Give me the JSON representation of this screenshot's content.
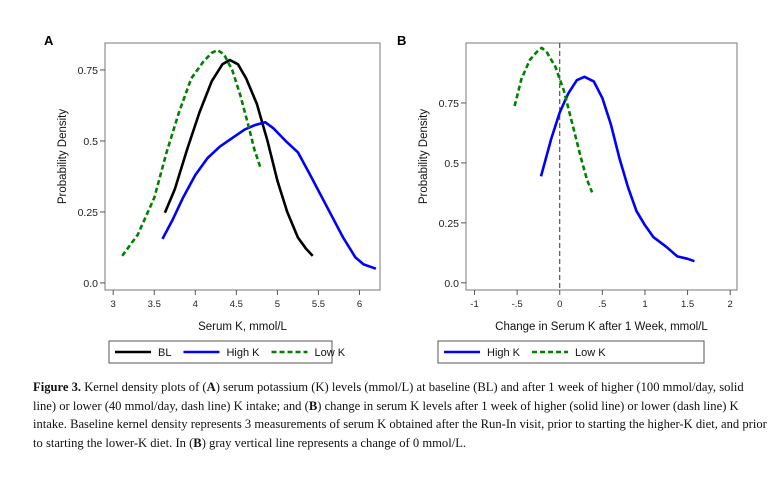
{
  "chart_data": [
    {
      "panel": "A",
      "type": "line",
      "title": "",
      "xlabel": "Serum K, mmol/L",
      "ylabel": "Probability Density",
      "xlim": [
        2.9,
        6.25
      ],
      "ylim": [
        -0.025,
        0.845
      ],
      "xticks": [
        3,
        3.5,
        4,
        4.5,
        5,
        5.5,
        6
      ],
      "xtick_labels": [
        "3",
        "3.5",
        "4",
        "4.5",
        "5",
        "5.5",
        "6"
      ],
      "yticks": [
        0,
        0.25,
        0.5,
        0.75
      ],
      "ytick_labels": [
        "0.0",
        "0.25",
        "0.5",
        "0.75"
      ],
      "grid": false,
      "legend_placement": "bottom",
      "series": [
        {
          "name": "BL",
          "color": "#000000",
          "dash": false,
          "x": [
            3.63,
            3.75,
            3.9,
            4.05,
            4.2,
            4.33,
            4.42,
            4.52,
            4.62,
            4.75,
            4.88,
            5.0,
            5.12,
            5.25,
            5.35,
            5.43
          ],
          "y": [
            0.247,
            0.33,
            0.47,
            0.6,
            0.71,
            0.77,
            0.785,
            0.77,
            0.72,
            0.63,
            0.5,
            0.36,
            0.25,
            0.16,
            0.12,
            0.095
          ]
        },
        {
          "name": "High K",
          "color": "#0000ff",
          "dash": false,
          "x": [
            3.6,
            3.72,
            3.85,
            4.0,
            4.15,
            4.3,
            4.45,
            4.6,
            4.72,
            4.85,
            4.95,
            5.1,
            5.25,
            5.4,
            5.6,
            5.8,
            5.95,
            6.05,
            6.2
          ],
          "y": [
            0.155,
            0.22,
            0.3,
            0.38,
            0.44,
            0.48,
            0.51,
            0.54,
            0.555,
            0.566,
            0.545,
            0.5,
            0.46,
            0.38,
            0.27,
            0.16,
            0.09,
            0.065,
            0.05
          ]
        },
        {
          "name": "Low K",
          "color": "#008000",
          "dash": true,
          "x": [
            3.11,
            3.3,
            3.5,
            3.65,
            3.8,
            3.95,
            4.1,
            4.2,
            4.27,
            4.35,
            4.45,
            4.55,
            4.65,
            4.72,
            4.8
          ],
          "y": [
            0.095,
            0.17,
            0.3,
            0.46,
            0.6,
            0.72,
            0.78,
            0.81,
            0.82,
            0.805,
            0.75,
            0.66,
            0.55,
            0.47,
            0.4
          ]
        }
      ]
    },
    {
      "panel": "B",
      "type": "line",
      "title": "",
      "xlabel": "Change in Serum K after 1 Week, mmol/L",
      "ylabel": "Probability Density",
      "xlim": [
        -1.1,
        2.08
      ],
      "ylim": [
        -0.03,
        1.0
      ],
      "xticks": [
        -1,
        -0.5,
        0,
        0.5,
        1,
        1.5,
        2
      ],
      "xtick_labels": [
        "-1",
        "-.5",
        "0",
        ".5",
        "1",
        "1.5",
        "2"
      ],
      "yticks": [
        0,
        0.25,
        0.5,
        0.75
      ],
      "ytick_labels": [
        "0.0",
        "0.25",
        "0.5",
        "0.75"
      ],
      "grid": false,
      "reference_line_x": 0,
      "legend_placement": "bottom",
      "series": [
        {
          "name": "High K",
          "color": "#0000ff",
          "dash": false,
          "x": [
            -0.22,
            -0.1,
            0.0,
            0.1,
            0.2,
            0.29,
            0.4,
            0.5,
            0.6,
            0.7,
            0.8,
            0.9,
            1.0,
            1.1,
            1.25,
            1.38,
            1.5,
            1.58
          ],
          "y": [
            0.444,
            0.6,
            0.71,
            0.79,
            0.845,
            0.859,
            0.84,
            0.77,
            0.66,
            0.52,
            0.4,
            0.3,
            0.24,
            0.19,
            0.15,
            0.11,
            0.1,
            0.09
          ]
        },
        {
          "name": "Low K",
          "color": "#008000",
          "dash": true,
          "x": [
            -0.53,
            -0.45,
            -0.35,
            -0.25,
            -0.21,
            -0.15,
            -0.05,
            0.05,
            0.15,
            0.25,
            0.32,
            0.38
          ],
          "y": [
            0.737,
            0.85,
            0.93,
            0.97,
            0.98,
            0.96,
            0.9,
            0.8,
            0.66,
            0.52,
            0.43,
            0.377
          ]
        }
      ]
    }
  ],
  "panels": {
    "a_label": "A",
    "b_label": "B"
  },
  "legends": {
    "a": [
      "BL",
      "High K",
      "Low K"
    ],
    "b": [
      "High K",
      "Low K"
    ]
  },
  "caption": {
    "fig_label": "Figure 3.",
    "text_parts": [
      " Kernel density plots of (",
      "A",
      ") serum potassium (K) levels (mmol/L) at baseline (BL) and after 1 week of higher (100 mmol/day, solid line) or lower (40 mmol/day, dash line) K intake; and (",
      "B",
      ") change in serum K levels after 1 week of higher (solid line) or lower (dash line) K intake. Baseline kernel density represents 3 measurements of serum K obtained after the Run-In visit, prior to starting the higher-K diet, and prior to starting the lower-K diet.  In (",
      "B",
      ") gray vertical line represents a change of 0 mmol/L."
    ]
  }
}
